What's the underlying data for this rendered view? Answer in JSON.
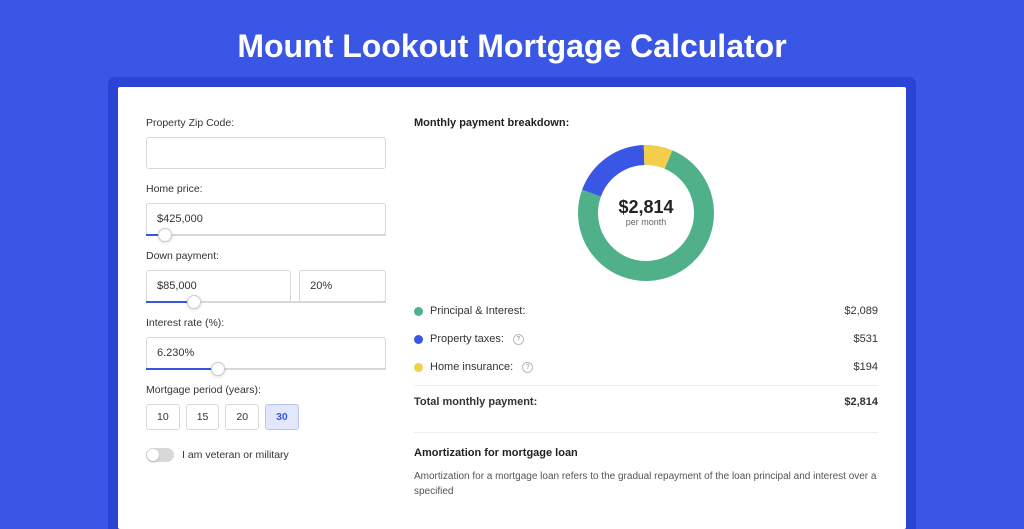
{
  "page": {
    "title": "Mount Lookout Mortgage Calculator",
    "bg_color": "#3a56e4",
    "card_shadow_color": "#2b44d6"
  },
  "form": {
    "zip": {
      "label": "Property Zip Code:",
      "value": ""
    },
    "home_price": {
      "label": "Home price:",
      "value": "$425,000",
      "slider_pct": 8
    },
    "down_payment": {
      "label": "Down payment:",
      "value_amount": "$85,000",
      "value_pct": "20%",
      "slider_pct": 20
    },
    "interest_rate": {
      "label": "Interest rate (%):",
      "value": "6.230%",
      "slider_pct": 30
    },
    "mortgage_period": {
      "label": "Mortgage period (years):",
      "options": [
        "10",
        "15",
        "20",
        "30"
      ],
      "selected": "30"
    },
    "veteran": {
      "label": "I am veteran or military",
      "checked": false
    }
  },
  "breakdown": {
    "title": "Monthly payment breakdown:",
    "center_amount": "$2,814",
    "center_sub": "per month",
    "donut": {
      "type": "donut",
      "radius": 58,
      "stroke_width": 20,
      "bg_color": "#ffffff",
      "slices": [
        {
          "label": "Principal & Interest:",
          "value": "$2,089",
          "pct": 74.2,
          "color": "#4fb08a"
        },
        {
          "label": "Property taxes:",
          "value": "$531",
          "pct": 18.9,
          "color": "#3a56e4",
          "info": true
        },
        {
          "label": "Home insurance:",
          "value": "$194",
          "pct": 6.9,
          "color": "#f2ce4a",
          "info": true
        }
      ]
    },
    "total": {
      "label": "Total monthly payment:",
      "value": "$2,814"
    }
  },
  "amortization": {
    "title": "Amortization for mortgage loan",
    "text": "Amortization for a mortgage loan refers to the gradual repayment of the loan principal and interest over a specified"
  }
}
